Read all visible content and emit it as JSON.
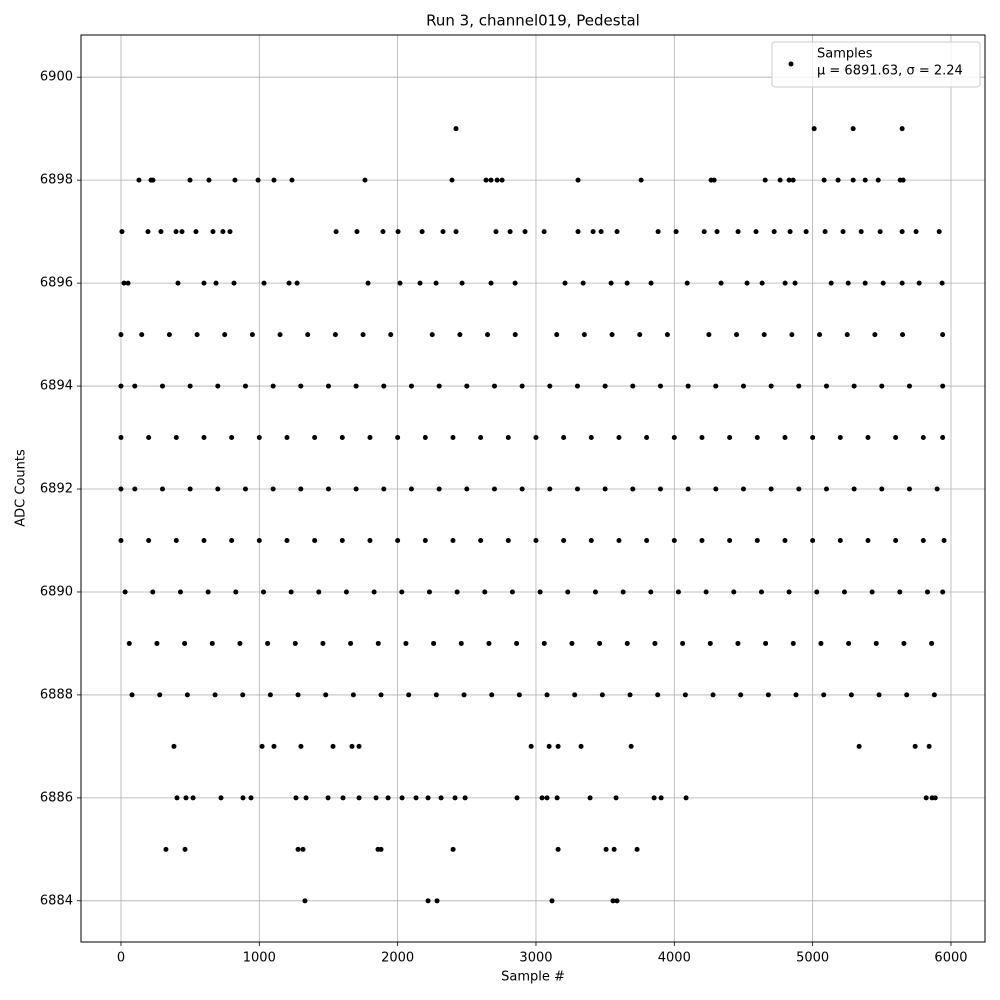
{
  "chart_data": {
    "type": "scatter",
    "title": "Run 3, channel019, Pedestal",
    "x_label": "Sample #",
    "y_label": "ADC Counts",
    "stats_label": "μ = 6891.63, σ = 2.24",
    "xlim": [
      -289,
      6246
    ],
    "ylim": [
      6883.2,
      6900.82
    ],
    "xticks": [
      0,
      1000,
      2000,
      3000,
      4000,
      5000,
      6000
    ],
    "yticks": [
      6884,
      6886,
      6888,
      6890,
      6892,
      6894,
      6896,
      6898,
      6900
    ],
    "grid": true,
    "legend": "upper right",
    "series": [
      {
        "name": "Samples",
        "color": "#000000",
        "x": [
          2422,
          5011,
          5293,
          5647,
          130,
          217,
          231,
          499,
          636,
          824,
          991,
          1106,
          1236,
          1764,
          2393,
          2639,
          2675,
          2719,
          2755,
          3304,
          3760,
          4266,
          4288,
          4657,
          4765,
          4830,
          4859,
          5083,
          5184,
          5293,
          5380,
          5474,
          5633,
          5654,
          7,
          195,
          289,
          398,
          441,
          542,
          665,
          737,
          788,
          1555,
          1706,
          1894,
          2003,
          2177,
          2328,
          2422,
          2711,
          2813,
          2921,
          3059,
          3304,
          3413,
          3471,
          3586,
          3883,
          4013,
          4216,
          4309,
          4461,
          4591,
          4722,
          4837,
          4953,
          5090,
          5220,
          5351,
          5488,
          5647,
          5748,
          5915,
          22,
          51,
          412,
          600,
          687,
          817,
          1034,
          1215,
          1273,
          1786,
          2017,
          2162,
          2278,
          2466,
          2675,
          2849,
          3210,
          3341,
          3543,
          3659,
          3832,
          4093,
          4338,
          4526,
          4635,
          4801,
          4873,
          5134,
          5257,
          5380,
          5510,
          5647,
          5770,
          5936,
          0,
          150,
          350,
          550,
          750,
          950,
          1150,
          1350,
          1550,
          1750,
          1950,
          2250,
          2450,
          2650,
          2850,
          3150,
          3350,
          3550,
          3750,
          3950,
          4250,
          4450,
          4650,
          4850,
          5050,
          5250,
          5450,
          5650,
          5940,
          0,
          100,
          300,
          500,
          700,
          900,
          1100,
          1300,
          1500,
          1700,
          1900,
          2100,
          2300,
          2500,
          2700,
          2900,
          3100,
          3300,
          3500,
          3700,
          3900,
          4100,
          4300,
          4500,
          4700,
          4900,
          5100,
          5300,
          5500,
          5700,
          5940,
          0,
          200,
          400,
          600,
          800,
          1000,
          1200,
          1400,
          1600,
          1800,
          2000,
          2200,
          2400,
          2600,
          2800,
          3000,
          3200,
          3400,
          3600,
          3800,
          4000,
          4200,
          4400,
          4600,
          4800,
          5000,
          5200,
          5400,
          5600,
          5800,
          5940,
          0,
          100,
          300,
          500,
          700,
          900,
          1100,
          1300,
          1500,
          1700,
          1900,
          2100,
          2300,
          2500,
          2700,
          2900,
          3100,
          3300,
          3500,
          3700,
          3900,
          4100,
          4300,
          4500,
          4700,
          4900,
          5100,
          5300,
          5500,
          5700,
          5900,
          0,
          200,
          400,
          600,
          800,
          1000,
          1200,
          1400,
          1600,
          1800,
          2000,
          2200,
          2400,
          2600,
          2800,
          3000,
          3200,
          3400,
          3600,
          3800,
          4000,
          4200,
          4400,
          4600,
          4800,
          5000,
          5200,
          5400,
          5600,
          5800,
          5950,
          30,
          230,
          430,
          630,
          830,
          1030,
          1230,
          1430,
          1630,
          1830,
          2030,
          2230,
          2430,
          2630,
          2830,
          3030,
          3230,
          3430,
          3630,
          3830,
          4030,
          4230,
          4430,
          4630,
          4830,
          5030,
          5230,
          5430,
          5630,
          5830,
          5940,
          60,
          260,
          460,
          660,
          860,
          1060,
          1260,
          1460,
          1660,
          1860,
          2060,
          2260,
          2460,
          2660,
          2860,
          3060,
          3260,
          3460,
          3660,
          3860,
          4060,
          4260,
          4460,
          4660,
          4860,
          5060,
          5260,
          5460,
          5660,
          5860,
          80,
          280,
          480,
          680,
          880,
          1080,
          1280,
          1480,
          1680,
          1880,
          2080,
          2280,
          2480,
          2680,
          2880,
          3080,
          3280,
          3480,
          3680,
          3880,
          4080,
          4280,
          4480,
          4680,
          4880,
          5080,
          5280,
          5480,
          5680,
          5880,
          383,
          1020,
          1106,
          1301,
          1533,
          1670,
          1721,
          2965,
          3095,
          3160,
          3326,
          3688,
          5336,
          5741,
          5842,
          405,
          470,
          521,
          723,
          882,
          940,
          1265,
          1338,
          1497,
          1605,
          1721,
          1844,
          1931,
          2032,
          2133,
          2220,
          2314,
          2415,
          2488,
          2863,
          3044,
          3080,
          3153,
          3391,
          3579,
          3854,
          3905,
          4085,
          5821,
          5864,
          5886,
          325,
          463,
          1280,
          1316,
          1858,
          1880,
          2401,
          3160,
          3507,
          3565,
          3731,
          1330,
          2220,
          2285,
          3116,
          3557,
          3586
        ],
        "values": [
          6899,
          6899,
          6899,
          6899,
          6898,
          6898,
          6898,
          6898,
          6898,
          6898,
          6898,
          6898,
          6898,
          6898,
          6898,
          6898,
          6898,
          6898,
          6898,
          6898,
          6898,
          6898,
          6898,
          6898,
          6898,
          6898,
          6898,
          6898,
          6898,
          6898,
          6898,
          6898,
          6898,
          6898,
          6897,
          6897,
          6897,
          6897,
          6897,
          6897,
          6897,
          6897,
          6897,
          6897,
          6897,
          6897,
          6897,
          6897,
          6897,
          6897,
          6897,
          6897,
          6897,
          6897,
          6897,
          6897,
          6897,
          6897,
          6897,
          6897,
          6897,
          6897,
          6897,
          6897,
          6897,
          6897,
          6897,
          6897,
          6897,
          6897,
          6897,
          6897,
          6897,
          6897,
          6896,
          6896,
          6896,
          6896,
          6896,
          6896,
          6896,
          6896,
          6896,
          6896,
          6896,
          6896,
          6896,
          6896,
          6896,
          6896,
          6896,
          6896,
          6896,
          6896,
          6896,
          6896,
          6896,
          6896,
          6896,
          6896,
          6896,
          6896,
          6896,
          6896,
          6896,
          6896,
          6896,
          6896,
          6895,
          6895,
          6895,
          6895,
          6895,
          6895,
          6895,
          6895,
          6895,
          6895,
          6895,
          6895,
          6895,
          6895,
          6895,
          6895,
          6895,
          6895,
          6895,
          6895,
          6895,
          6895,
          6895,
          6895,
          6895,
          6895,
          6895,
          6895,
          6895,
          6894,
          6894,
          6894,
          6894,
          6894,
          6894,
          6894,
          6894,
          6894,
          6894,
          6894,
          6894,
          6894,
          6894,
          6894,
          6894,
          6894,
          6894,
          6894,
          6894,
          6894,
          6894,
          6894,
          6894,
          6894,
          6894,
          6894,
          6894,
          6894,
          6894,
          6894,
          6893,
          6893,
          6893,
          6893,
          6893,
          6893,
          6893,
          6893,
          6893,
          6893,
          6893,
          6893,
          6893,
          6893,
          6893,
          6893,
          6893,
          6893,
          6893,
          6893,
          6893,
          6893,
          6893,
          6893,
          6893,
          6893,
          6893,
          6893,
          6893,
          6893,
          6893,
          6892,
          6892,
          6892,
          6892,
          6892,
          6892,
          6892,
          6892,
          6892,
          6892,
          6892,
          6892,
          6892,
          6892,
          6892,
          6892,
          6892,
          6892,
          6892,
          6892,
          6892,
          6892,
          6892,
          6892,
          6892,
          6892,
          6892,
          6892,
          6892,
          6892,
          6892,
          6891,
          6891,
          6891,
          6891,
          6891,
          6891,
          6891,
          6891,
          6891,
          6891,
          6891,
          6891,
          6891,
          6891,
          6891,
          6891,
          6891,
          6891,
          6891,
          6891,
          6891,
          6891,
          6891,
          6891,
          6891,
          6891,
          6891,
          6891,
          6891,
          6891,
          6891,
          6890,
          6890,
          6890,
          6890,
          6890,
          6890,
          6890,
          6890,
          6890,
          6890,
          6890,
          6890,
          6890,
          6890,
          6890,
          6890,
          6890,
          6890,
          6890,
          6890,
          6890,
          6890,
          6890,
          6890,
          6890,
          6890,
          6890,
          6890,
          6890,
          6890,
          6890,
          6889,
          6889,
          6889,
          6889,
          6889,
          6889,
          6889,
          6889,
          6889,
          6889,
          6889,
          6889,
          6889,
          6889,
          6889,
          6889,
          6889,
          6889,
          6889,
          6889,
          6889,
          6889,
          6889,
          6889,
          6889,
          6889,
          6889,
          6889,
          6889,
          6889,
          6888,
          6888,
          6888,
          6888,
          6888,
          6888,
          6888,
          6888,
          6888,
          6888,
          6888,
          6888,
          6888,
          6888,
          6888,
          6888,
          6888,
          6888,
          6888,
          6888,
          6888,
          6888,
          6888,
          6888,
          6888,
          6888,
          6888,
          6888,
          6888,
          6888,
          6887,
          6887,
          6887,
          6887,
          6887,
          6887,
          6887,
          6887,
          6887,
          6887,
          6887,
          6887,
          6887,
          6887,
          6887,
          6886,
          6886,
          6886,
          6886,
          6886,
          6886,
          6886,
          6886,
          6886,
          6886,
          6886,
          6886,
          6886,
          6886,
          6886,
          6886,
          6886,
          6886,
          6886,
          6886,
          6886,
          6886,
          6886,
          6886,
          6886,
          6886,
          6886,
          6886,
          6886,
          6886,
          6886,
          6885,
          6885,
          6885,
          6885,
          6885,
          6885,
          6885,
          6885,
          6885,
          6885,
          6885,
          6884,
          6884,
          6884,
          6884,
          6884,
          6884
        ]
      }
    ]
  }
}
